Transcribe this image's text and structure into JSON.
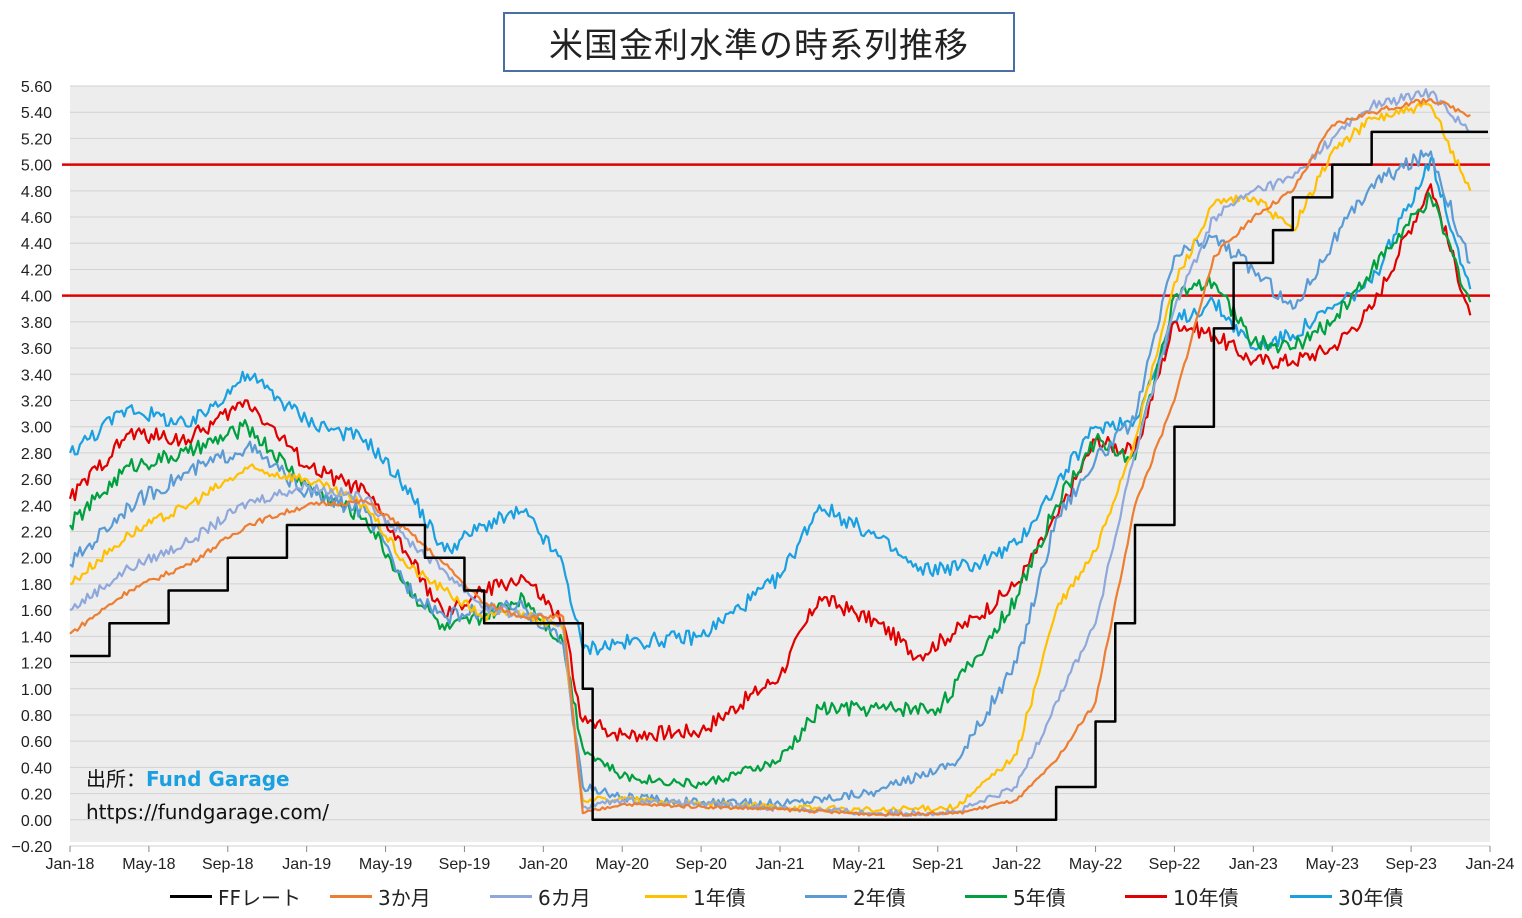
{
  "title": "米国金利水準の時系列推移",
  "source": {
    "prefix": "出所：",
    "brand": "Fund Garage",
    "url": "https://fundgarage.com/"
  },
  "chart_data": {
    "type": "line",
    "title": "米国金利水準の時系列推移",
    "ylim": [
      -0.2,
      5.6
    ],
    "y_ticks": [
      "−0.20",
      "0.00",
      "0.20",
      "0.40",
      "0.60",
      "0.80",
      "1.00",
      "1.20",
      "1.40",
      "1.60",
      "1.80",
      "2.00",
      "2.20",
      "2.40",
      "2.60",
      "2.80",
      "3.00",
      "3.20",
      "3.40",
      "3.60",
      "3.80",
      "4.00",
      "4.20",
      "4.40",
      "4.60",
      "4.80",
      "5.00",
      "5.20",
      "5.40",
      "5.60"
    ],
    "x_ticks": [
      "Jan-18",
      "May-18",
      "Sep-18",
      "Jan-19",
      "May-19",
      "Sep-19",
      "Jan-20",
      "May-20",
      "Sep-20",
      "Jan-21",
      "May-21",
      "Sep-21",
      "Jan-22",
      "May-22",
      "Sep-22",
      "Jan-23",
      "May-23",
      "Sep-23",
      "Jan-24"
    ],
    "xlim": [
      "2018-01",
      "2024-01"
    ],
    "grid": true,
    "legend_position": "bottom",
    "reference_lines": [
      {
        "y": 4.0,
        "color": "#e00000"
      },
      {
        "y": 5.0,
        "color": "#e00000"
      }
    ],
    "series": [
      {
        "name": "FFレート",
        "color": "#000000",
        "step": true,
        "points": [
          [
            "2018-01",
            1.25
          ],
          [
            "2018-03",
            1.5
          ],
          [
            "2018-06",
            1.75
          ],
          [
            "2018-09",
            2.0
          ],
          [
            "2018-12",
            2.25
          ],
          [
            "2019-07",
            2.0
          ],
          [
            "2019-09",
            1.75
          ],
          [
            "2019-10",
            1.5
          ],
          [
            "2020-03",
            1.0
          ],
          [
            "2020-03-16",
            0.0
          ],
          [
            "2022-03",
            0.25
          ],
          [
            "2022-05",
            0.75
          ],
          [
            "2022-06",
            1.5
          ],
          [
            "2022-07",
            2.25
          ],
          [
            "2022-09",
            3.0
          ],
          [
            "2022-11",
            3.75
          ],
          [
            "2022-12",
            4.25
          ],
          [
            "2023-02",
            4.5
          ],
          [
            "2023-03",
            4.75
          ],
          [
            "2023-05",
            5.0
          ],
          [
            "2023-07",
            5.25
          ],
          [
            "2023-12",
            5.25
          ]
        ]
      },
      {
        "name": "3か月",
        "color": "#ed7d31",
        "points": [
          [
            "2018-01",
            1.42
          ],
          [
            "2018-04",
            1.75
          ],
          [
            "2018-07",
            1.95
          ],
          [
            "2018-10",
            2.25
          ],
          [
            "2019-01",
            2.4
          ],
          [
            "2019-04",
            2.43
          ],
          [
            "2019-06",
            2.22
          ],
          [
            "2019-08",
            1.95
          ],
          [
            "2019-10",
            1.65
          ],
          [
            "2019-12",
            1.55
          ],
          [
            "2020-02",
            1.55
          ],
          [
            "2020-03",
            0.05
          ],
          [
            "2020-05",
            0.12
          ],
          [
            "2020-09",
            0.1
          ],
          [
            "2021-01",
            0.08
          ],
          [
            "2021-06",
            0.04
          ],
          [
            "2021-10",
            0.05
          ],
          [
            "2022-01",
            0.15
          ],
          [
            "2022-03",
            0.45
          ],
          [
            "2022-05",
            0.9
          ],
          [
            "2022-07",
            2.4
          ],
          [
            "2022-09",
            3.2
          ],
          [
            "2022-11",
            4.3
          ],
          [
            "2023-01",
            4.6
          ],
          [
            "2023-03",
            4.8
          ],
          [
            "2023-05",
            5.3
          ],
          [
            "2023-07",
            5.4
          ],
          [
            "2023-10",
            5.5
          ],
          [
            "2023-12",
            5.38
          ]
        ]
      },
      {
        "name": "6カ月",
        "color": "#8fa8dc",
        "points": [
          [
            "2018-01",
            1.6
          ],
          [
            "2018-04",
            1.92
          ],
          [
            "2018-07",
            2.12
          ],
          [
            "2018-10",
            2.42
          ],
          [
            "2019-01",
            2.55
          ],
          [
            "2019-04",
            2.45
          ],
          [
            "2019-06",
            2.15
          ],
          [
            "2019-08",
            1.9
          ],
          [
            "2019-10",
            1.62
          ],
          [
            "2019-12",
            1.56
          ],
          [
            "2020-02",
            1.5
          ],
          [
            "2020-03",
            0.1
          ],
          [
            "2020-05",
            0.15
          ],
          [
            "2020-09",
            0.12
          ],
          [
            "2021-01",
            0.09
          ],
          [
            "2021-06",
            0.05
          ],
          [
            "2021-10",
            0.06
          ],
          [
            "2022-01",
            0.25
          ],
          [
            "2022-03",
            0.9
          ],
          [
            "2022-05",
            1.5
          ],
          [
            "2022-07",
            2.8
          ],
          [
            "2022-09",
            3.9
          ],
          [
            "2022-11",
            4.6
          ],
          [
            "2023-01",
            4.8
          ],
          [
            "2023-03",
            4.9
          ],
          [
            "2023-05",
            5.2
          ],
          [
            "2023-07",
            5.45
          ],
          [
            "2023-10",
            5.55
          ],
          [
            "2023-12",
            5.25
          ]
        ]
      },
      {
        "name": "1年債",
        "color": "#ffc000",
        "points": [
          [
            "2018-01",
            1.8
          ],
          [
            "2018-04",
            2.18
          ],
          [
            "2018-07",
            2.4
          ],
          [
            "2018-10",
            2.68
          ],
          [
            "2019-01",
            2.6
          ],
          [
            "2019-04",
            2.4
          ],
          [
            "2019-06",
            1.95
          ],
          [
            "2019-08",
            1.75
          ],
          [
            "2019-10",
            1.55
          ],
          [
            "2019-12",
            1.58
          ],
          [
            "2020-02",
            1.45
          ],
          [
            "2020-03",
            0.15
          ],
          [
            "2020-05",
            0.16
          ],
          [
            "2020-09",
            0.12
          ],
          [
            "2021-01",
            0.1
          ],
          [
            "2021-06",
            0.07
          ],
          [
            "2021-10",
            0.1
          ],
          [
            "2022-01",
            0.5
          ],
          [
            "2022-03",
            1.6
          ],
          [
            "2022-05",
            2.05
          ],
          [
            "2022-07",
            2.9
          ],
          [
            "2022-09",
            4.1
          ],
          [
            "2022-11",
            4.7
          ],
          [
            "2023-01",
            4.75
          ],
          [
            "2023-03",
            4.5
          ],
          [
            "2023-05",
            5.1
          ],
          [
            "2023-07",
            5.35
          ],
          [
            "2023-10",
            5.45
          ],
          [
            "2023-12",
            4.8
          ]
        ]
      },
      {
        "name": "2年債",
        "color": "#5b9bd5",
        "points": [
          [
            "2018-01",
            1.95
          ],
          [
            "2018-04",
            2.4
          ],
          [
            "2018-07",
            2.65
          ],
          [
            "2018-10",
            2.85
          ],
          [
            "2019-01",
            2.5
          ],
          [
            "2019-04",
            2.35
          ],
          [
            "2019-06",
            1.8
          ],
          [
            "2019-08",
            1.55
          ],
          [
            "2019-10",
            1.6
          ],
          [
            "2019-12",
            1.62
          ],
          [
            "2020-02",
            1.35
          ],
          [
            "2020-03",
            0.25
          ],
          [
            "2020-05",
            0.17
          ],
          [
            "2020-09",
            0.13
          ],
          [
            "2021-01",
            0.12
          ],
          [
            "2021-06",
            0.22
          ],
          [
            "2021-10",
            0.45
          ],
          [
            "2022-01",
            1.2
          ],
          [
            "2022-03",
            2.3
          ],
          [
            "2022-05",
            2.75
          ],
          [
            "2022-07",
            3.05
          ],
          [
            "2022-09",
            4.3
          ],
          [
            "2022-11",
            4.45
          ],
          [
            "2023-01",
            4.2
          ],
          [
            "2023-03",
            3.9
          ],
          [
            "2023-05",
            4.4
          ],
          [
            "2023-07",
            4.85
          ],
          [
            "2023-10",
            5.1
          ],
          [
            "2023-12",
            4.25
          ]
        ]
      },
      {
        "name": "5年債",
        "color": "#00a040",
        "points": [
          [
            "2018-01",
            2.25
          ],
          [
            "2018-04",
            2.7
          ],
          [
            "2018-07",
            2.8
          ],
          [
            "2018-10",
            3.0
          ],
          [
            "2019-01",
            2.55
          ],
          [
            "2019-04",
            2.3
          ],
          [
            "2019-06",
            1.8
          ],
          [
            "2019-08",
            1.45
          ],
          [
            "2019-10",
            1.55
          ],
          [
            "2019-12",
            1.7
          ],
          [
            "2020-02",
            1.35
          ],
          [
            "2020-03",
            0.55
          ],
          [
            "2020-05",
            0.33
          ],
          [
            "2020-09",
            0.27
          ],
          [
            "2021-01",
            0.45
          ],
          [
            "2021-03",
            0.85
          ],
          [
            "2021-06",
            0.85
          ],
          [
            "2021-09",
            0.85
          ],
          [
            "2021-11",
            1.25
          ],
          [
            "2022-01",
            1.7
          ],
          [
            "2022-03",
            2.4
          ],
          [
            "2022-05",
            2.9
          ],
          [
            "2022-07",
            2.75
          ],
          [
            "2022-09",
            4.0
          ],
          [
            "2022-11",
            4.1
          ],
          [
            "2023-01",
            3.65
          ],
          [
            "2023-03",
            3.6
          ],
          [
            "2023-05",
            3.8
          ],
          [
            "2023-07",
            4.2
          ],
          [
            "2023-10",
            4.75
          ],
          [
            "2023-12",
            3.95
          ]
        ]
      },
      {
        "name": "10年債",
        "color": "#e00000",
        "points": [
          [
            "2018-01",
            2.45
          ],
          [
            "2018-04",
            2.95
          ],
          [
            "2018-07",
            2.9
          ],
          [
            "2018-10",
            3.2
          ],
          [
            "2019-01",
            2.7
          ],
          [
            "2019-04",
            2.5
          ],
          [
            "2019-06",
            2.05
          ],
          [
            "2019-08",
            1.55
          ],
          [
            "2019-10",
            1.75
          ],
          [
            "2019-12",
            1.85
          ],
          [
            "2020-02",
            1.5
          ],
          [
            "2020-03",
            0.75
          ],
          [
            "2020-05",
            0.65
          ],
          [
            "2020-09",
            0.68
          ],
          [
            "2021-01",
            1.1
          ],
          [
            "2021-03",
            1.7
          ],
          [
            "2021-06",
            1.5
          ],
          [
            "2021-08",
            1.25
          ],
          [
            "2021-11",
            1.55
          ],
          [
            "2022-01",
            1.8
          ],
          [
            "2022-03",
            2.3
          ],
          [
            "2022-05",
            2.9
          ],
          [
            "2022-07",
            2.8
          ],
          [
            "2022-09",
            3.8
          ],
          [
            "2022-11",
            3.7
          ],
          [
            "2023-01",
            3.5
          ],
          [
            "2023-03",
            3.5
          ],
          [
            "2023-05",
            3.6
          ],
          [
            "2023-07",
            3.9
          ],
          [
            "2023-10",
            4.85
          ],
          [
            "2023-12",
            3.85
          ]
        ]
      },
      {
        "name": "30年債",
        "color": "#1aa0e0",
        "points": [
          [
            "2018-01",
            2.8
          ],
          [
            "2018-04",
            3.15
          ],
          [
            "2018-07",
            3.0
          ],
          [
            "2018-10",
            3.4
          ],
          [
            "2019-01",
            3.05
          ],
          [
            "2019-04",
            2.9
          ],
          [
            "2019-06",
            2.55
          ],
          [
            "2019-08",
            2.05
          ],
          [
            "2019-10",
            2.25
          ],
          [
            "2019-12",
            2.35
          ],
          [
            "2020-02",
            1.95
          ],
          [
            "2020-03",
            1.3
          ],
          [
            "2020-05",
            1.35
          ],
          [
            "2020-09",
            1.4
          ],
          [
            "2021-01",
            1.85
          ],
          [
            "2021-03",
            2.4
          ],
          [
            "2021-06",
            2.15
          ],
          [
            "2021-08",
            1.9
          ],
          [
            "2021-11",
            1.95
          ],
          [
            "2022-01",
            2.1
          ],
          [
            "2022-03",
            2.55
          ],
          [
            "2022-05",
            3.0
          ],
          [
            "2022-07",
            3.05
          ],
          [
            "2022-09",
            3.8
          ],
          [
            "2022-11",
            3.95
          ],
          [
            "2023-01",
            3.6
          ],
          [
            "2023-03",
            3.7
          ],
          [
            "2023-05",
            3.9
          ],
          [
            "2023-07",
            4.1
          ],
          [
            "2023-10",
            5.05
          ],
          [
            "2023-12",
            4.05
          ]
        ]
      }
    ]
  }
}
